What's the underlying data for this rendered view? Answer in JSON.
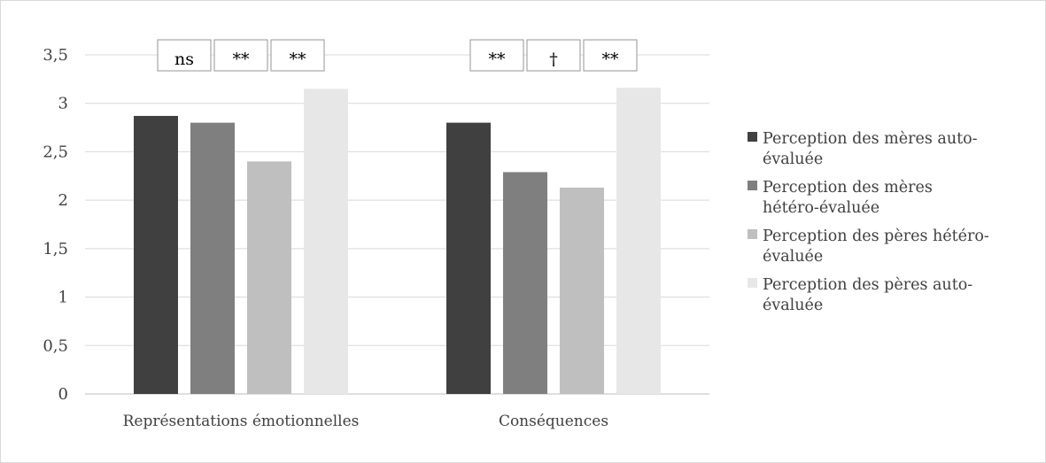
{
  "chart_data": {
    "type": "bar",
    "title": "",
    "xlabel": "",
    "ylabel": "",
    "ylim": [
      0,
      3.5
    ],
    "yticks": [
      "0",
      "0,5",
      "1",
      "1,5",
      "2",
      "2,5",
      "3",
      "3,5"
    ],
    "grid": true,
    "legend_position": "right",
    "categories": [
      "Représentations émotionnelles",
      "Conséquences"
    ],
    "series": [
      {
        "name": "Perception des mères auto-évaluée",
        "legend_lines": [
          "Perception des mères auto-",
          "évaluée"
        ],
        "color": "#404040",
        "values": [
          2.87,
          2.8
        ]
      },
      {
        "name": "Perception des mères hétéro-évaluée",
        "legend_lines": [
          "Perception des mères",
          "hétéro-évaluée"
        ],
        "color": "#7f7f7f",
        "values": [
          2.8,
          2.29
        ]
      },
      {
        "name": "Perception des pères hétéro-évaluée",
        "legend_lines": [
          "Perception des pères hétéro-",
          "évaluée"
        ],
        "color": "#bfbfbf",
        "values": [
          2.4,
          2.13
        ]
      },
      {
        "name": "Perception des pères auto-évaluée",
        "legend_lines": [
          "Perception des pères auto-",
          "évaluée"
        ],
        "color": "#e7e7e7",
        "values": [
          3.15,
          3.16
        ]
      }
    ],
    "annotations": [
      {
        "category": 0,
        "labels": [
          "ns",
          "**",
          "**"
        ]
      },
      {
        "category": 1,
        "labels": [
          "**",
          "†",
          "**"
        ]
      }
    ]
  }
}
